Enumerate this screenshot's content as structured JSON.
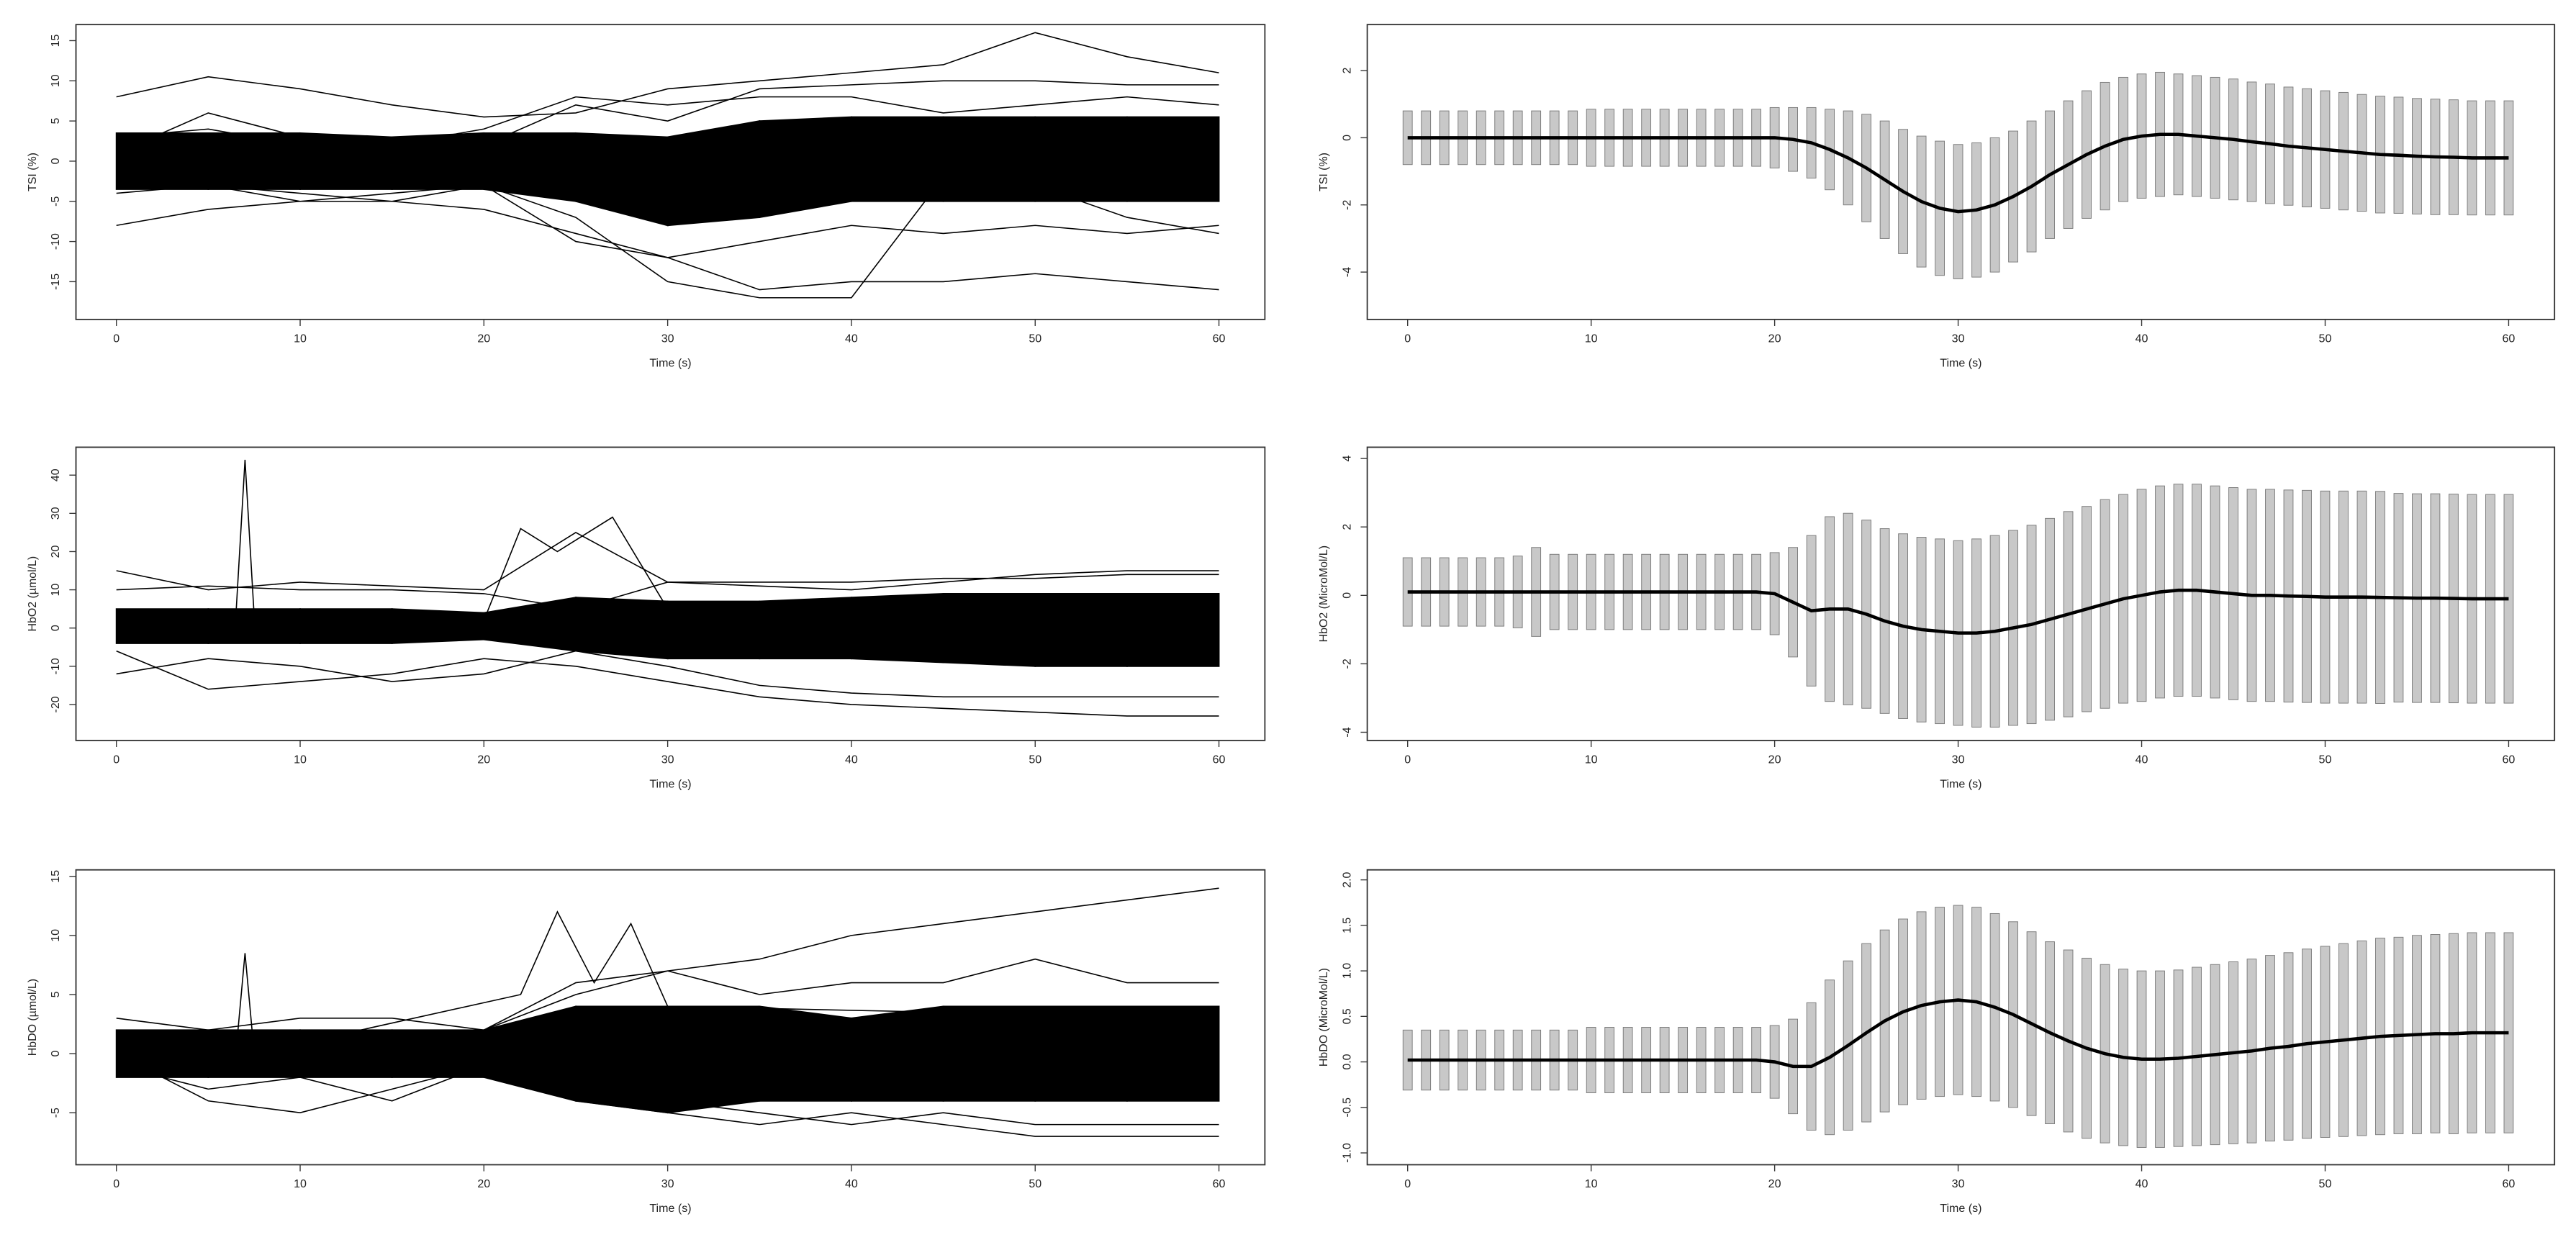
{
  "chart_data": [
    {
      "type": "line",
      "xlabel": "Time (s)",
      "ylabel": "TSI (%)",
      "xlim": [
        -2.2,
        62.5
      ],
      "xticks": [
        0,
        10,
        20,
        30,
        40,
        50,
        60
      ],
      "ylim": [
        -19.7,
        17.0
      ],
      "yticks": [
        -15,
        -10,
        -5,
        0,
        5,
        10,
        15
      ],
      "x": [
        0,
        5,
        10,
        15,
        20,
        25,
        30,
        35,
        40,
        45,
        50,
        55,
        60
      ],
      "band": {
        "color": "#000000",
        "lower": [
          -3.5,
          -3.5,
          -3.5,
          -3.5,
          -3.5,
          -5,
          -8,
          -7,
          -5,
          -5,
          -5,
          -5,
          -5
        ],
        "upper": [
          3.5,
          3.5,
          3.5,
          3,
          3.5,
          3.5,
          3,
          5,
          5.5,
          5.5,
          5.5,
          5.5,
          5.5
        ]
      },
      "series": [
        {
          "color": "#000000",
          "values": [
            8,
            10.5,
            9,
            7,
            5.5,
            6,
            9,
            10,
            11,
            12,
            16,
            13,
            11
          ]
        },
        {
          "color": "#000000",
          "values": [
            3,
            4,
            2,
            1,
            2,
            7,
            5,
            9,
            9.5,
            10,
            10,
            9.5,
            9.5
          ]
        },
        {
          "color": "#000000",
          "values": [
            -8,
            -6,
            -5,
            -5,
            -6,
            -9,
            -12,
            -16,
            -15,
            -15,
            -14,
            -15,
            -16
          ]
        },
        {
          "color": "#000000",
          "values": [
            -4,
            -3,
            -4,
            -5,
            -3,
            -7,
            -15,
            -17,
            -17,
            -2,
            -3,
            -7,
            -9
          ]
        },
        {
          "color": "#000000",
          "values": [
            1,
            6,
            3,
            2,
            4,
            8,
            7,
            8,
            8,
            6,
            7,
            8,
            7
          ]
        },
        {
          "color": "#000000",
          "values": [
            -2,
            -3,
            -5,
            -4,
            -3,
            -10,
            -12,
            -10,
            -8,
            -9,
            -8,
            -9,
            -8
          ]
        }
      ]
    },
    {
      "type": "errorbar",
      "xlabel": "Time (s)",
      "ylabel": "TSI (%)",
      "xlim": [
        -2.2,
        62.5
      ],
      "xticks": [
        0,
        10,
        20,
        30,
        40,
        50,
        60
      ],
      "ylim": [
        -5.41,
        3.37
      ],
      "yticks": [
        -4,
        -2,
        0,
        2
      ],
      "x": [
        0,
        1,
        2,
        3,
        4,
        5,
        6,
        7,
        8,
        9,
        10,
        11,
        12,
        13,
        14,
        15,
        16,
        17,
        18,
        19,
        20,
        21,
        22,
        23,
        24,
        25,
        26,
        27,
        28,
        29,
        30,
        31,
        32,
        33,
        34,
        35,
        36,
        37,
        38,
        39,
        40,
        41,
        42,
        43,
        44,
        45,
        46,
        47,
        48,
        49,
        50,
        51,
        52,
        53,
        54,
        55,
        56,
        57,
        58,
        59,
        60
      ],
      "color": "#000000",
      "bar_color": "#c8c8c8",
      "values": [
        0,
        0,
        0,
        0,
        0,
        0,
        0,
        0,
        0,
        0,
        0,
        0,
        0,
        0,
        0,
        0,
        0,
        0,
        0,
        0,
        0,
        -0.05,
        -0.15,
        -0.35,
        -0.6,
        -0.9,
        -1.25,
        -1.6,
        -1.9,
        -2.1,
        -2.2,
        -2.15,
        -2.0,
        -1.75,
        -1.45,
        -1.1,
        -0.8,
        -0.5,
        -0.25,
        -0.05,
        0.05,
        0.1,
        0.1,
        0.05,
        0,
        -0.05,
        -0.12,
        -0.18,
        -0.25,
        -0.3,
        -0.35,
        -0.4,
        -0.45,
        -0.5,
        -0.52,
        -0.55,
        -0.57,
        -0.58,
        -0.6,
        -0.6,
        -0.6
      ],
      "errors": [
        0.8,
        0.8,
        0.8,
        0.8,
        0.8,
        0.8,
        0.8,
        0.8,
        0.8,
        0.8,
        0.85,
        0.85,
        0.85,
        0.85,
        0.85,
        0.85,
        0.85,
        0.85,
        0.85,
        0.85,
        0.9,
        0.95,
        1.05,
        1.2,
        1.4,
        1.6,
        1.75,
        1.85,
        1.95,
        2.0,
        2.0,
        2.0,
        2.0,
        1.95,
        1.95,
        1.9,
        1.9,
        1.9,
        1.9,
        1.85,
        1.85,
        1.85,
        1.8,
        1.8,
        1.8,
        1.8,
        1.78,
        1.78,
        1.76,
        1.76,
        1.75,
        1.75,
        1.74,
        1.74,
        1.73,
        1.72,
        1.72,
        1.71,
        1.7,
        1.7,
        1.7
      ]
    },
    {
      "type": "line",
      "xlabel": "Time (s)",
      "ylabel": "HbO2 (µmol/L)",
      "xlim": [
        -2.2,
        62.5
      ],
      "xticks": [
        0,
        10,
        20,
        30,
        40,
        50,
        60
      ],
      "ylim": [
        -29.4,
        47.3
      ],
      "yticks": [
        -20,
        -10,
        0,
        10,
        20,
        30,
        40
      ],
      "x": [
        0,
        5,
        10,
        15,
        20,
        25,
        30,
        35,
        40,
        45,
        50,
        55,
        60
      ],
      "band": {
        "color": "#000000",
        "lower": [
          -4,
          -4,
          -4,
          -4,
          -3,
          -6,
          -8,
          -8,
          -8,
          -9,
          -10,
          -10,
          -10
        ],
        "upper": [
          5,
          5,
          5,
          5,
          4,
          8,
          7,
          7,
          8,
          9,
          9,
          9,
          9
        ]
      },
      "series": [
        {
          "color": "#000000",
          "values": [
            15,
            10,
            12,
            11,
            10,
            25,
            12,
            11,
            10,
            12,
            14,
            15,
            15
          ]
        },
        {
          "color": "#000000",
          "values": [
            -12,
            -8,
            -10,
            -14,
            -12,
            -6,
            -10,
            -15,
            -17,
            -18,
            -18,
            -18,
            -18
          ]
        },
        {
          "color": "#000000",
          "values": [
            10,
            11,
            10,
            10,
            9,
            5,
            12,
            12,
            12,
            13,
            13,
            14,
            14
          ]
        },
        {
          "color": "#000000",
          "values": [
            -6,
            -16,
            -14,
            -12,
            -8,
            -10,
            -14,
            -18,
            -20,
            -21,
            -22,
            -23,
            -23
          ]
        },
        {
          "color": "#000000",
          "x": [
            0,
            6.5,
            7,
            7.5,
            20,
            22,
            24,
            27,
            30,
            60
          ],
          "values": [
            3,
            3,
            44,
            3,
            2,
            26,
            20,
            29,
            5,
            4
          ]
        }
      ]
    },
    {
      "type": "errorbar",
      "xlabel": "Time (s)",
      "ylabel": "HbO2 (MicroMol/L)",
      "xlim": [
        -2.2,
        62.5
      ],
      "xticks": [
        0,
        10,
        20,
        30,
        40,
        50,
        60
      ],
      "ylim": [
        -4.24,
        4.33
      ],
      "yticks": [
        -4,
        -2,
        0,
        2,
        4
      ],
      "x": [
        0,
        1,
        2,
        3,
        4,
        5,
        6,
        7,
        8,
        9,
        10,
        11,
        12,
        13,
        14,
        15,
        16,
        17,
        18,
        19,
        20,
        21,
        22,
        23,
        24,
        25,
        26,
        27,
        28,
        29,
        30,
        31,
        32,
        33,
        34,
        35,
        36,
        37,
        38,
        39,
        40,
        41,
        42,
        43,
        44,
        45,
        46,
        47,
        48,
        49,
        50,
        51,
        52,
        53,
        54,
        55,
        56,
        57,
        58,
        59,
        60
      ],
      "color": "#000000",
      "bar_color": "#c8c8c8",
      "values": [
        0.1,
        0.1,
        0.1,
        0.1,
        0.1,
        0.1,
        0.1,
        0.1,
        0.1,
        0.1,
        0.1,
        0.1,
        0.1,
        0.1,
        0.1,
        0.1,
        0.1,
        0.1,
        0.1,
        0.1,
        0.05,
        -0.2,
        -0.45,
        -0.4,
        -0.4,
        -0.55,
        -0.75,
        -0.9,
        -1.0,
        -1.05,
        -1.1,
        -1.1,
        -1.05,
        -0.95,
        -0.85,
        -0.7,
        -0.55,
        -0.4,
        -0.25,
        -0.1,
        0.0,
        0.1,
        0.15,
        0.15,
        0.1,
        0.05,
        0,
        0,
        -0.02,
        -0.03,
        -0.05,
        -0.05,
        -0.05,
        -0.06,
        -0.07,
        -0.08,
        -0.08,
        -0.09,
        -0.1,
        -0.1,
        -0.1
      ],
      "errors": [
        1.0,
        1.0,
        1.0,
        1.0,
        1.0,
        1.0,
        1.05,
        1.3,
        1.1,
        1.1,
        1.1,
        1.1,
        1.1,
        1.1,
        1.1,
        1.1,
        1.1,
        1.1,
        1.1,
        1.1,
        1.2,
        1.6,
        2.2,
        2.7,
        2.8,
        2.75,
        2.7,
        2.7,
        2.7,
        2.7,
        2.7,
        2.75,
        2.8,
        2.85,
        2.9,
        2.95,
        3.0,
        3.0,
        3.05,
        3.05,
        3.1,
        3.1,
        3.1,
        3.1,
        3.1,
        3.1,
        3.1,
        3.1,
        3.1,
        3.1,
        3.1,
        3.1,
        3.1,
        3.1,
        3.05,
        3.05,
        3.05,
        3.05,
        3.05,
        3.05,
        3.05
      ]
    },
    {
      "type": "line",
      "xlabel": "Time (s)",
      "ylabel": "HbDO (µmol/L)",
      "xlim": [
        -2.2,
        62.5
      ],
      "xticks": [
        0,
        10,
        20,
        30,
        40,
        50,
        60
      ],
      "ylim": [
        -9.4,
        15.55
      ],
      "yticks": [
        -5,
        0,
        5,
        10,
        15
      ],
      "x": [
        0,
        5,
        10,
        15,
        20,
        25,
        30,
        35,
        40,
        45,
        50,
        55,
        60
      ],
      "band": {
        "color": "#000000",
        "lower": [
          -2,
          -2,
          -2,
          -2,
          -2,
          -4,
          -5,
          -4,
          -4,
          -4,
          -4,
          -4,
          -4
        ],
        "upper": [
          2,
          2,
          2,
          2,
          2,
          4,
          4,
          4,
          3,
          4,
          4,
          4,
          4
        ]
      },
      "series": [
        {
          "color": "#000000",
          "values": [
            1,
            2,
            2,
            1,
            2,
            5,
            7,
            8,
            10,
            11,
            12,
            13,
            14
          ]
        },
        {
          "color": "#000000",
          "x": [
            0,
            6.5,
            7,
            7.5,
            22,
            24,
            26,
            28,
            30,
            60
          ],
          "values": [
            0,
            0,
            8.5,
            0,
            5,
            12,
            6,
            11,
            4,
            3
          ]
        },
        {
          "color": "#000000",
          "values": [
            -1,
            -3,
            -2,
            -4,
            -1,
            -4,
            -5,
            -6,
            -5,
            -6,
            -7,
            -7,
            -7
          ]
        },
        {
          "color": "#000000",
          "values": [
            0,
            -4,
            -5,
            -3,
            -1,
            -3,
            -4,
            -5,
            -6,
            -5,
            -6,
            -6,
            -6
          ]
        },
        {
          "color": "#000000",
          "values": [
            3,
            2,
            3,
            3,
            2,
            6,
            7,
            5,
            6,
            6,
            8,
            6,
            6
          ]
        }
      ]
    },
    {
      "type": "errorbar",
      "xlabel": "Time (s)",
      "ylabel": "HbDO (MicroMol/L)",
      "xlim": [
        -2.2,
        62.5
      ],
      "xticks": [
        0,
        10,
        20,
        30,
        40,
        50,
        60
      ],
      "ylim": [
        -1.13,
        2.11
      ],
      "yticks": [
        {
          "value": -1,
          "label": "-1.0"
        },
        {
          "value": -0.5,
          "label": "-0.5"
        },
        {
          "value": 0,
          "label": "0.0"
        },
        {
          "value": 0.5,
          "label": "0.5"
        },
        {
          "value": 1,
          "label": "1.0"
        },
        {
          "value": 1.5,
          "label": "1.5"
        },
        {
          "value": 2,
          "label": "2.0"
        }
      ],
      "x": [
        0,
        1,
        2,
        3,
        4,
        5,
        6,
        7,
        8,
        9,
        10,
        11,
        12,
        13,
        14,
        15,
        16,
        17,
        18,
        19,
        20,
        21,
        22,
        23,
        24,
        25,
        26,
        27,
        28,
        29,
        30,
        31,
        32,
        33,
        34,
        35,
        36,
        37,
        38,
        39,
        40,
        41,
        42,
        43,
        44,
        45,
        46,
        47,
        48,
        49,
        50,
        51,
        52,
        53,
        54,
        55,
        56,
        57,
        58,
        59,
        60
      ],
      "color": "#000000",
      "bar_color": "#c8c8c8",
      "values": [
        0.02,
        0.02,
        0.02,
        0.02,
        0.02,
        0.02,
        0.02,
        0.02,
        0.02,
        0.02,
        0.02,
        0.02,
        0.02,
        0.02,
        0.02,
        0.02,
        0.02,
        0.02,
        0.02,
        0.02,
        0.0,
        -0.05,
        -0.05,
        0.05,
        0.18,
        0.32,
        0.45,
        0.55,
        0.62,
        0.66,
        0.68,
        0.66,
        0.6,
        0.52,
        0.42,
        0.32,
        0.23,
        0.15,
        0.09,
        0.05,
        0.03,
        0.03,
        0.04,
        0.06,
        0.08,
        0.1,
        0.12,
        0.15,
        0.17,
        0.2,
        0.22,
        0.24,
        0.26,
        0.28,
        0.29,
        0.3,
        0.31,
        0.31,
        0.32,
        0.32,
        0.32
      ],
      "errors": [
        0.33,
        0.33,
        0.33,
        0.33,
        0.33,
        0.33,
        0.33,
        0.33,
        0.33,
        0.33,
        0.36,
        0.36,
        0.36,
        0.36,
        0.36,
        0.36,
        0.36,
        0.36,
        0.36,
        0.36,
        0.4,
        0.52,
        0.7,
        0.85,
        0.93,
        0.98,
        1.0,
        1.02,
        1.03,
        1.04,
        1.04,
        1.04,
        1.03,
        1.02,
        1.01,
        1.0,
        1.0,
        0.99,
        0.98,
        0.97,
        0.97,
        0.97,
        0.97,
        0.98,
        0.99,
        1.0,
        1.01,
        1.02,
        1.03,
        1.04,
        1.05,
        1.06,
        1.07,
        1.08,
        1.08,
        1.09,
        1.09,
        1.1,
        1.1,
        1.1,
        1.1
      ]
    }
  ]
}
